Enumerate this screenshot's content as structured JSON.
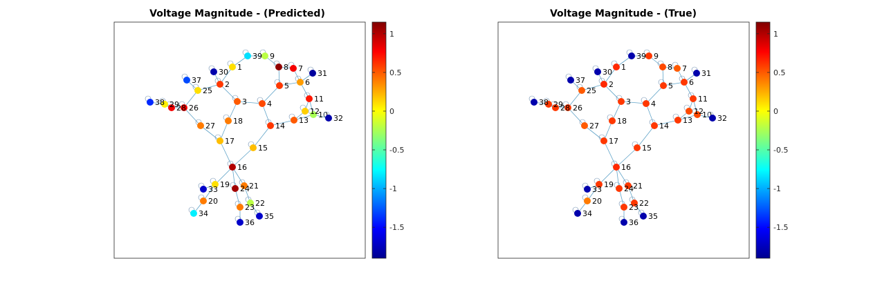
{
  "figure": {
    "panels": [
      {
        "title": "Voltage Magnitude - (Predicted)"
      },
      {
        "title": "Voltage Magnitude - (True)"
      }
    ],
    "colorbar_ticks": [
      "1",
      "0.5",
      "0",
      "-0.5",
      "-1",
      "-1.5"
    ]
  },
  "chart_data": [
    {
      "type": "network",
      "title": "Voltage Magnitude - (Predicted)",
      "colormap": "jet",
      "clim": [
        -1.9,
        1.15
      ],
      "colorbar_ticks": [
        1,
        0.5,
        0,
        -0.5,
        -1,
        -1.5
      ],
      "node_values": {
        "1": 0.1,
        "2": 0.6,
        "3": 0.5,
        "4": 0.55,
        "5": 0.6,
        "6": 0.3,
        "7": 0.8,
        "8": 1.1,
        "9": -0.2,
        "10": -0.25,
        "11": 0.7,
        "12": 0.15,
        "13": 0.5,
        "14": 0.6,
        "15": 0.2,
        "16": 1.0,
        "17": 0.2,
        "18": 0.4,
        "19": 0.1,
        "20": 0.4,
        "21": 0.4,
        "22": -0.2,
        "23": 0.4,
        "24": 1.05,
        "25": 0.1,
        "26": 0.8,
        "27": 0.4,
        "28": 0.8,
        "29": 0.05,
        "30": -1.8,
        "31": -1.85,
        "32": -1.8,
        "33": -1.7,
        "34": -0.8,
        "35": -1.7,
        "36": -1.7,
        "37": -1.3,
        "38": -1.4,
        "39": -0.85
      }
    },
    {
      "type": "network",
      "title": "Voltage Magnitude - (True)",
      "colormap": "jet",
      "clim": [
        -1.9,
        1.15
      ],
      "colorbar_ticks": [
        1,
        0.5,
        0,
        -0.5,
        -1,
        -1.5
      ],
      "node_values": {
        "1": 0.65,
        "2": 0.65,
        "3": 0.6,
        "4": 0.6,
        "5": 0.6,
        "6": 0.6,
        "7": 0.5,
        "8": 0.55,
        "9": 0.6,
        "10": 0.55,
        "11": 0.6,
        "12": 0.55,
        "13": 0.6,
        "14": 0.6,
        "15": 0.6,
        "16": 0.65,
        "17": 0.6,
        "18": 0.6,
        "19": 0.6,
        "20": 0.4,
        "21": 0.6,
        "22": 0.6,
        "23": 0.6,
        "24": 0.6,
        "25": 0.5,
        "26": 0.6,
        "27": 0.5,
        "28": 0.6,
        "29": 0.6,
        "30": -1.8,
        "31": -1.8,
        "32": -1.8,
        "33": -1.8,
        "34": -1.8,
        "35": -1.8,
        "36": -1.8,
        "37": -1.8,
        "38": -1.8,
        "39": -1.8
      }
    }
  ]
}
